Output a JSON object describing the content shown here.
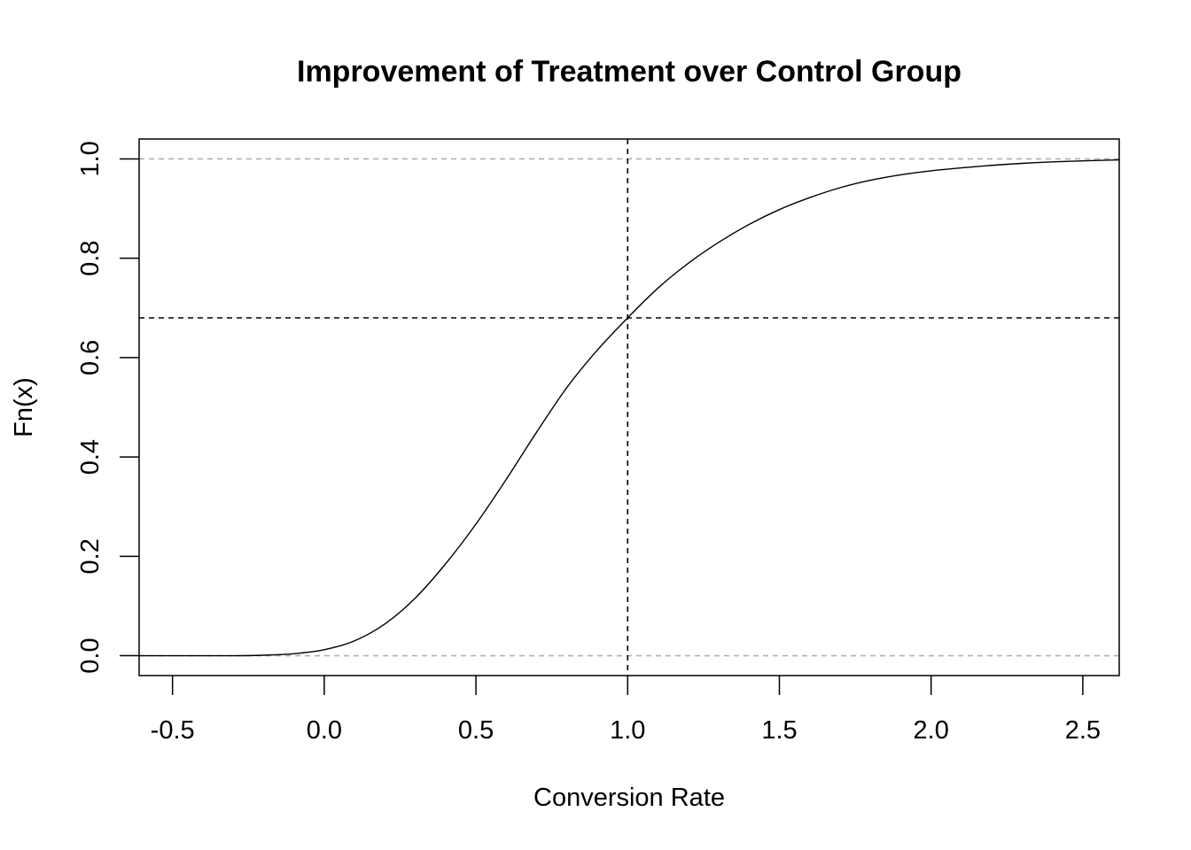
{
  "chart_data": {
    "type": "line",
    "title": "Improvement of Treatment over Control Group",
    "xlabel": "Conversion Rate",
    "ylabel": "Fn(x)",
    "xlim": [
      -0.61,
      2.62
    ],
    "ylim": [
      -0.04,
      1.04
    ],
    "x_ticks": [
      -0.5,
      0.0,
      0.5,
      1.0,
      1.5,
      2.0,
      2.5
    ],
    "x_tick_labels": [
      "-0.5",
      "0.0",
      "0.5",
      "1.0",
      "1.5",
      "2.0",
      "2.5"
    ],
    "y_ticks": [
      0.0,
      0.2,
      0.4,
      0.6,
      0.8,
      1.0
    ],
    "y_tick_labels": [
      "0.0",
      "0.2",
      "0.4",
      "0.6",
      "0.8",
      "1.0"
    ],
    "grid": false,
    "series": [
      {
        "x": [
          -0.61,
          -0.4,
          -0.3,
          -0.2,
          -0.1,
          0.0,
          0.1,
          0.2,
          0.3,
          0.4,
          0.5,
          0.6,
          0.7,
          0.8,
          0.9,
          1.0,
          1.1,
          1.2,
          1.3,
          1.4,
          1.5,
          1.6,
          1.7,
          1.8,
          1.9,
          2.0,
          2.1,
          2.2,
          2.3,
          2.4,
          2.5,
          2.62
        ],
        "y": [
          0.0,
          0.0,
          0.0,
          0.001,
          0.004,
          0.012,
          0.03,
          0.064,
          0.116,
          0.185,
          0.265,
          0.355,
          0.45,
          0.54,
          0.615,
          0.68,
          0.74,
          0.79,
          0.832,
          0.868,
          0.898,
          0.922,
          0.942,
          0.957,
          0.968,
          0.976,
          0.982,
          0.987,
          0.991,
          0.994,
          0.996,
          0.998
        ],
        "color": "#000000"
      }
    ],
    "reference_lines": [
      {
        "orientation": "horizontal",
        "value": 0.0,
        "style": "dashed",
        "color": "#b0b0b0"
      },
      {
        "orientation": "horizontal",
        "value": 1.0,
        "style": "dashed",
        "color": "#b0b0b0"
      },
      {
        "orientation": "horizontal",
        "value": 0.68,
        "style": "dashed",
        "color": "#000000"
      },
      {
        "orientation": "vertical",
        "value": 1.0,
        "style": "dashed",
        "color": "#000000"
      }
    ]
  }
}
